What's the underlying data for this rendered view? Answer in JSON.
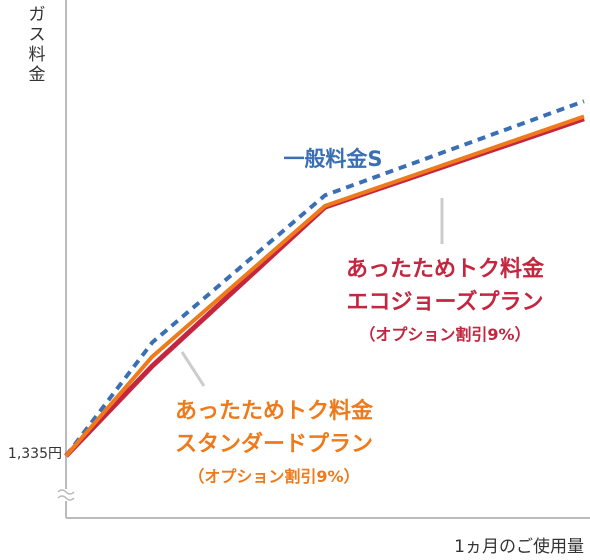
{
  "chart_data": {
    "type": "line",
    "title": "",
    "xlabel": "1ヵ月のご使用量",
    "ylabel": "ガス料金",
    "ytick_label": "1,335円",
    "ytick_value": 1335,
    "y_axis_broken": true,
    "grid": false,
    "legend": "none (direct labels on lines)",
    "x": [
      0,
      1,
      3,
      6
    ],
    "series": [
      {
        "name": "一般料金S",
        "values": [
          1335,
          2300,
          3550,
          4350
        ],
        "color": "#3a6fb5",
        "style": "dashed"
      },
      {
        "name": "あったためトク料金 エコジョーズプラン （オプション割引9%）",
        "values": [
          1335,
          2100,
          3450,
          4200
        ],
        "color": "#c4263f",
        "style": "solid"
      },
      {
        "name": "あったためトク料金 スタンダードプラン （オプション割引9%）",
        "values": [
          1335,
          2180,
          3460,
          4220
        ],
        "color": "#ee7a1b",
        "style": "solid"
      }
    ],
    "labels": {
      "general": "一般料金S",
      "eco_line1": "あったためトク料金",
      "eco_line2": "エコジョーズプラン",
      "eco_line3": "（オプション割引9%）",
      "std_line1": "あったためトク料金",
      "std_line2": "スタンダードプラン",
      "std_line3": "（オプション割引9%）"
    },
    "axis_color": "#bbbbbb",
    "ylim": [
      900,
      4700
    ],
    "xlim": [
      0,
      6
    ]
  }
}
